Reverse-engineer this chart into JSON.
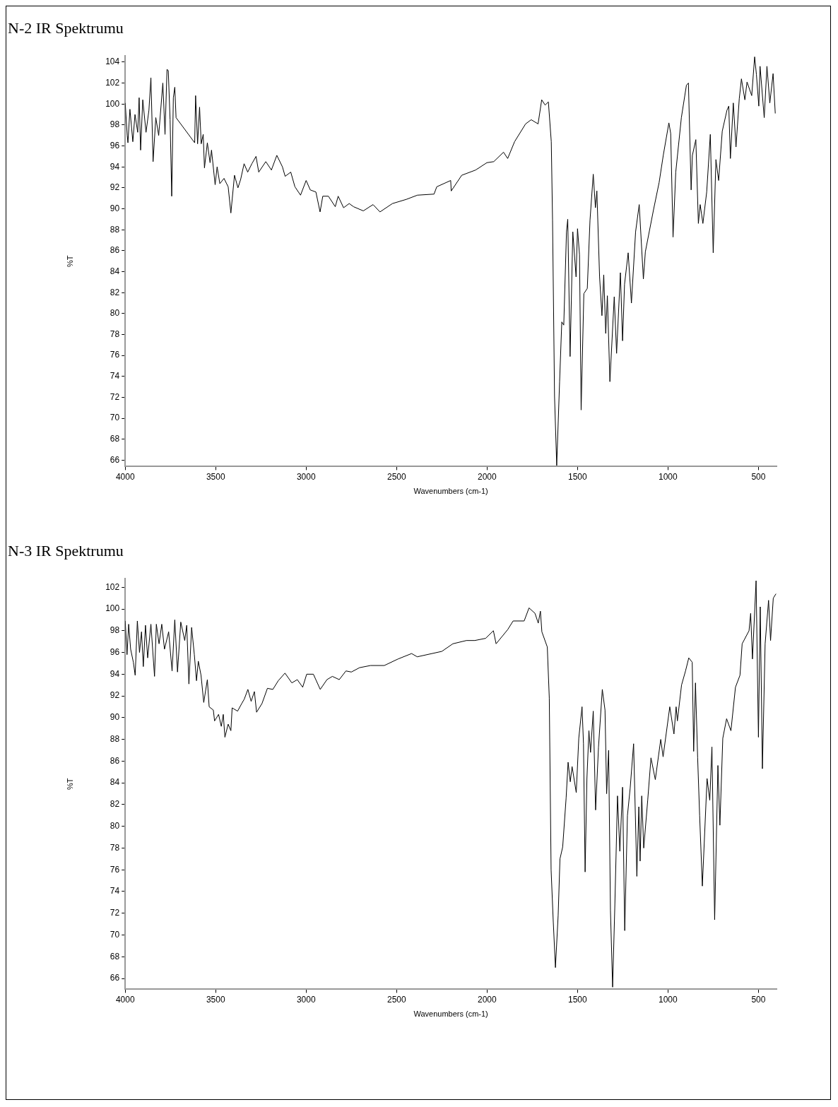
{
  "chart_data": [
    {
      "type": "line",
      "title": "N-2 IR Spektrumu",
      "xlabel": "Wavenumbers (cm-1)",
      "ylabel": "%T",
      "xlim": [
        4000,
        400
      ],
      "ylim": [
        65.4,
        104.6
      ],
      "xticks": [
        4000,
        3500,
        3000,
        2500,
        2000,
        1500,
        1000,
        500
      ],
      "yticks": [
        66,
        68,
        70,
        72,
        74,
        76,
        78,
        80,
        82,
        84,
        86,
        88,
        90,
        92,
        94,
        96,
        98,
        100,
        102,
        104
      ],
      "grid": false,
      "legend": false,
      "marker": "none",
      "line_style": "solid",
      "x": [
        4000,
        3989,
        3985,
        3974,
        3958,
        3946,
        3931,
        3923,
        3915,
        3903,
        3885,
        3869,
        3858,
        3846,
        3831,
        3815,
        3792,
        3780,
        3769,
        3762,
        3752,
        3743,
        3734,
        3726,
        3719,
        3616,
        3611,
        3600,
        3589,
        3580,
        3569,
        3562,
        3546,
        3531,
        3523,
        3503,
        3492,
        3477,
        3454,
        3431,
        3416,
        3396,
        3377,
        3362,
        3343,
        3323,
        3300,
        3277,
        3262,
        3223,
        3192,
        3162,
        3131,
        3116,
        3085,
        3062,
        3031,
        3000,
        2977,
        2946,
        2923,
        2908,
        2877,
        2839,
        2823,
        2793,
        2762,
        2738,
        2684,
        2630,
        2592,
        2523,
        2446,
        2385,
        2293,
        2278,
        2201,
        2198,
        2140,
        2063,
        2001,
        1963,
        1909,
        1886,
        1848,
        1787,
        1756,
        1718,
        1698,
        1679,
        1661,
        1645,
        1638,
        1627,
        1615,
        1599,
        1587,
        1576,
        1561,
        1554,
        1541,
        1526,
        1508,
        1500,
        1489,
        1480,
        1465,
        1446,
        1431,
        1413,
        1401,
        1393,
        1378,
        1365,
        1355,
        1344,
        1335,
        1321,
        1297,
        1284,
        1263,
        1251,
        1240,
        1220,
        1202,
        1179,
        1159,
        1136,
        1125,
        1080,
        1049,
        1026,
        995,
        985,
        972,
        957,
        926,
        898,
        887,
        872,
        865,
        846,
        832,
        822,
        807,
        786,
        766,
        750,
        735,
        720,
        700,
        674,
        664,
        655,
        639,
        624,
        606,
        594,
        575,
        563,
        537,
        521,
        511,
        498,
        491,
        468,
        453,
        437,
        419,
        407
      ],
      "values": [
        100.1,
        97,
        96.3,
        99.5,
        96.4,
        99,
        97.3,
        100.6,
        95.6,
        100.4,
        97.3,
        99.4,
        102.5,
        94.5,
        98.7,
        97,
        102,
        97.1,
        103.3,
        103.2,
        98.5,
        91.2,
        100.6,
        101.6,
        98.7,
        96.3,
        100.8,
        96.2,
        99.7,
        96.2,
        97.1,
        93.9,
        96.3,
        94.4,
        95.6,
        92.3,
        94,
        92.4,
        92.9,
        92.1,
        89.6,
        93.2,
        92,
        92.8,
        94.3,
        93.5,
        94.3,
        95,
        93.5,
        94.5,
        93.7,
        95.1,
        94,
        93.1,
        93.5,
        92.1,
        91.3,
        92.7,
        91.8,
        91.6,
        89.7,
        91.2,
        91.2,
        90.2,
        91.2,
        90.1,
        90.5,
        90.2,
        89.8,
        90.4,
        89.7,
        90.5,
        90.9,
        91.3,
        91.4,
        92.1,
        92.7,
        91.7,
        93.2,
        93.7,
        94.4,
        94.5,
        95.4,
        94.8,
        96.4,
        98.1,
        98.5,
        98.1,
        100.4,
        99.9,
        100.2,
        96.4,
        88.9,
        72.1,
        65.5,
        73.5,
        79.2,
        78.9,
        87.8,
        89,
        75.9,
        87.8,
        83.5,
        88.1,
        85.6,
        70.8,
        81.9,
        82.4,
        88.9,
        93.3,
        90.1,
        91.7,
        83.5,
        79.8,
        83.7,
        78.1,
        81.7,
        73.5,
        81.6,
        76.2,
        83.9,
        77.4,
        82.8,
        85.8,
        81,
        87.8,
        90.4,
        83.3,
        85.9,
        89.9,
        92.5,
        95.1,
        98.2,
        97.2,
        87.3,
        93.5,
        98.7,
        101.8,
        102,
        91.8,
        95.1,
        96.6,
        88.6,
        90.4,
        88.6,
        91.6,
        97.1,
        85.8,
        94.7,
        92.7,
        97.4,
        99.4,
        99.8,
        94.8,
        100.1,
        95.9,
        100.5,
        102.4,
        100.4,
        102.1,
        100.8,
        104.5,
        102.8,
        99.8,
        103.6,
        98.7,
        103.6,
        100.1,
        102.9,
        99.1
      ],
      "color": "#000000"
    },
    {
      "type": "line",
      "title": "N-3 IR Spektrumu",
      "xlabel": "Wavenumbers (cm-1)",
      "ylabel": "%T",
      "xlim": [
        4000,
        400
      ],
      "ylim": [
        65,
        102.8
      ],
      "xticks": [
        4000,
        3500,
        3000,
        2500,
        2000,
        1500,
        1000,
        500
      ],
      "yticks": [
        66,
        68,
        70,
        72,
        74,
        76,
        78,
        80,
        82,
        84,
        86,
        88,
        90,
        92,
        94,
        96,
        98,
        100,
        102
      ],
      "grid": false,
      "legend": false,
      "marker": "none",
      "line_style": "solid",
      "x": [
        4000,
        3990,
        3981,
        3970,
        3955,
        3945,
        3933,
        3921,
        3910,
        3900,
        3888,
        3876,
        3858,
        3838,
        3828,
        3813,
        3798,
        3783,
        3760,
        3741,
        3726,
        3711,
        3693,
        3671,
        3660,
        3648,
        3633,
        3618,
        3606,
        3596,
        3581,
        3566,
        3546,
        3536,
        3513,
        3506,
        3484,
        3469,
        3458,
        3449,
        3431,
        3416,
        3409,
        3379,
        3356,
        3342,
        3322,
        3304,
        3286,
        3274,
        3244,
        3214,
        3184,
        3154,
        3117,
        3079,
        3049,
        3019,
        2997,
        2960,
        2922,
        2885,
        2855,
        2817,
        2780,
        2750,
        2705,
        2644,
        2568,
        2492,
        2417,
        2386,
        2250,
        2189,
        2114,
        2068,
        2008,
        1965,
        1950,
        1886,
        1856,
        1795,
        1768,
        1735,
        1717,
        1705,
        1697,
        1667,
        1656,
        1646,
        1634,
        1622,
        1607,
        1597,
        1582,
        1563,
        1552,
        1540,
        1530,
        1507,
        1493,
        1475,
        1467,
        1458,
        1448,
        1437,
        1428,
        1413,
        1400,
        1384,
        1363,
        1348,
        1339,
        1328,
        1318,
        1306,
        1294,
        1279,
        1266,
        1251,
        1239,
        1224,
        1209,
        1190,
        1172,
        1161,
        1154,
        1145,
        1134,
        1112,
        1094,
        1070,
        1040,
        1027,
        990,
        967,
        955,
        948,
        925,
        903,
        885,
        866,
        858,
        848,
        836,
        825,
        810,
        784,
        769,
        757,
        742,
        724,
        713,
        697,
        676,
        652,
        627,
        602,
        590,
        552,
        543,
        533,
        513,
        500,
        490,
        478,
        463,
        444,
        433,
        418,
        403
      ],
      "values": [
        98.9,
        95.8,
        98.6,
        96.3,
        95.1,
        93.9,
        98.9,
        96,
        97.9,
        94.7,
        98.5,
        95.5,
        98.6,
        93.8,
        98.6,
        96.8,
        98.6,
        96.3,
        97.9,
        94.3,
        99,
        94.2,
        98.8,
        97.1,
        98.5,
        93.1,
        98.3,
        95.8,
        93.4,
        95.2,
        93.9,
        91.4,
        93.5,
        91,
        90.7,
        89.7,
        90.3,
        89.2,
        90.3,
        88.2,
        89.4,
        88.8,
        90.9,
        90.6,
        91.3,
        91.7,
        92.6,
        91.5,
        92.4,
        90.5,
        91.3,
        92.7,
        92.6,
        93.4,
        94.1,
        93.2,
        93.5,
        92.8,
        94,
        94,
        92.6,
        93.5,
        93.8,
        93.5,
        94.3,
        94.2,
        94.6,
        94.8,
        94.8,
        95.4,
        95.9,
        95.6,
        96.1,
        96.8,
        97.1,
        97.1,
        97.3,
        98,
        96.8,
        98.1,
        98.9,
        98.9,
        100.1,
        99.6,
        98.7,
        99.8,
        97.9,
        96.5,
        91.8,
        76,
        71.2,
        67,
        71.8,
        77,
        78.1,
        82.6,
        85.9,
        84.1,
        85.5,
        83.1,
        88.1,
        91,
        87.6,
        75.8,
        84.4,
        88.8,
        86.8,
        90.6,
        81.5,
        87.3,
        92.6,
        90.7,
        83,
        87,
        72.3,
        65.2,
        72.5,
        82.8,
        77.7,
        83.6,
        70.4,
        81,
        83.5,
        87.6,
        75.4,
        81.8,
        76.8,
        82.8,
        78,
        82.4,
        86.3,
        84.3,
        88,
        86.4,
        91,
        88.5,
        91,
        89.7,
        93,
        94.3,
        95.5,
        95.1,
        86.9,
        93.2,
        86.3,
        81,
        74.5,
        84.4,
        82.4,
        87.3,
        71.4,
        85.6,
        80.1,
        88.1,
        89.9,
        88.8,
        92.8,
        93.9,
        96.8,
        98,
        99.6,
        95.4,
        102.6,
        88.2,
        100.2,
        85.3,
        96.8,
        100.8,
        97.1,
        101,
        101.4
      ],
      "color": "#000000"
    }
  ]
}
